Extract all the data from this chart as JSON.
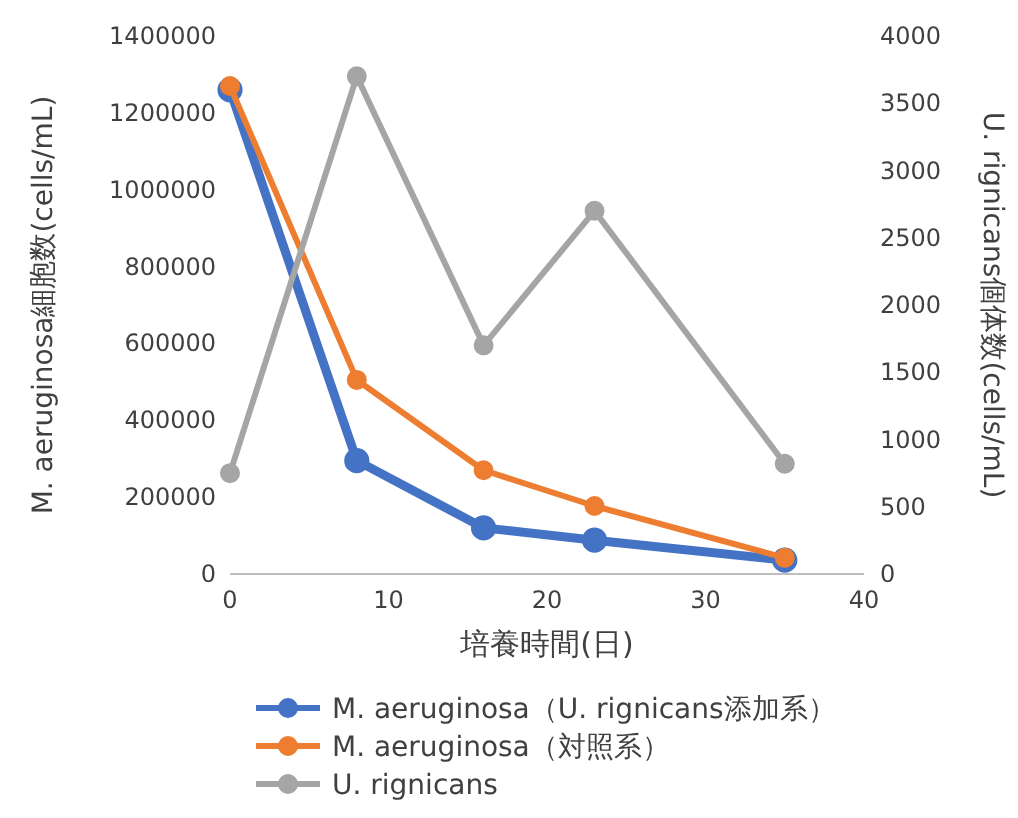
{
  "chart_data": {
    "type": "line",
    "xlabel": "培養時間(日)",
    "ylabel": "M. aeruginosa細胞数(cells/mL)",
    "y2label": "U. rignicans個体数(cells/mL)",
    "xlim": [
      0,
      40
    ],
    "xticks": [
      0,
      10,
      20,
      30,
      40
    ],
    "ylim": [
      0,
      1400000
    ],
    "yticks": [
      0,
      200000,
      400000,
      600000,
      800000,
      1000000,
      1200000,
      1400000
    ],
    "y2lim": [
      0,
      4000
    ],
    "y2ticks": [
      0,
      500,
      1000,
      1500,
      2000,
      2500,
      3000,
      3500,
      4000
    ],
    "x": [
      0,
      8,
      16,
      23,
      35
    ],
    "marker": "circle",
    "legend": "bottom",
    "grid": false,
    "series": [
      {
        "name": "M. aeruginosa（U. rignicans添加系）",
        "color": "#4472c4",
        "values": [
          1260000,
          295000,
          120000,
          88000,
          36000
        ]
      },
      {
        "name": "M. aeruginosa（対照系）",
        "color": "#ed7d31",
        "values": [
          1270000,
          505000,
          270000,
          177000,
          42000
        ]
      },
      {
        "name": "U. rignicans",
        "color": "#a5a5a5",
        "axis": "y2",
        "values": [
          750,
          3700,
          1700,
          2700,
          820
        ]
      }
    ]
  }
}
